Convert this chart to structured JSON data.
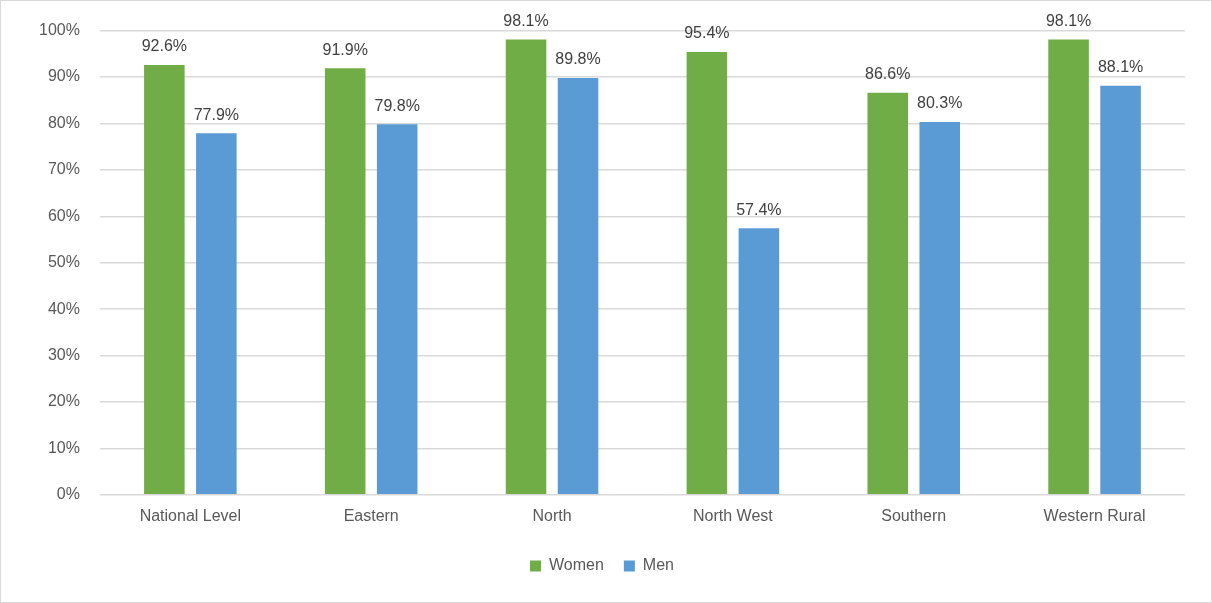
{
  "chart_data": {
    "type": "bar",
    "categories": [
      "National Level",
      "Eastern",
      "North",
      "North West",
      "Southern",
      "Western Rural"
    ],
    "series": [
      {
        "name": "Women",
        "color": "#70ad47",
        "values": [
          92.6,
          91.9,
          98.1,
          95.4,
          86.6,
          98.1
        ],
        "value_labels": [
          "92.6%",
          "91.9%",
          "98.1%",
          "95.4%",
          "86.6%",
          "98.1%"
        ]
      },
      {
        "name": "Men",
        "color": "#5b9bd5",
        "values": [
          77.9,
          79.8,
          89.8,
          57.4,
          80.3,
          88.1
        ],
        "value_labels": [
          "77.9%",
          "79.8%",
          "89.8%",
          "57.4%",
          "80.3%",
          "88.1%"
        ]
      }
    ],
    "ylim": [
      0,
      100
    ],
    "yticks": [
      {
        "value": 0,
        "label": "0%"
      },
      {
        "value": 10,
        "label": "10%"
      },
      {
        "value": 20,
        "label": "20%"
      },
      {
        "value": 30,
        "label": "30%"
      },
      {
        "value": 40,
        "label": "40%"
      },
      {
        "value": 50,
        "label": "50%"
      },
      {
        "value": 60,
        "label": "60%"
      },
      {
        "value": 70,
        "label": "70%"
      },
      {
        "value": 80,
        "label": "80%"
      },
      {
        "value": 90,
        "label": "90%"
      },
      {
        "value": 100,
        "label": "100%"
      }
    ],
    "grid": "y",
    "legend": "bottom"
  }
}
